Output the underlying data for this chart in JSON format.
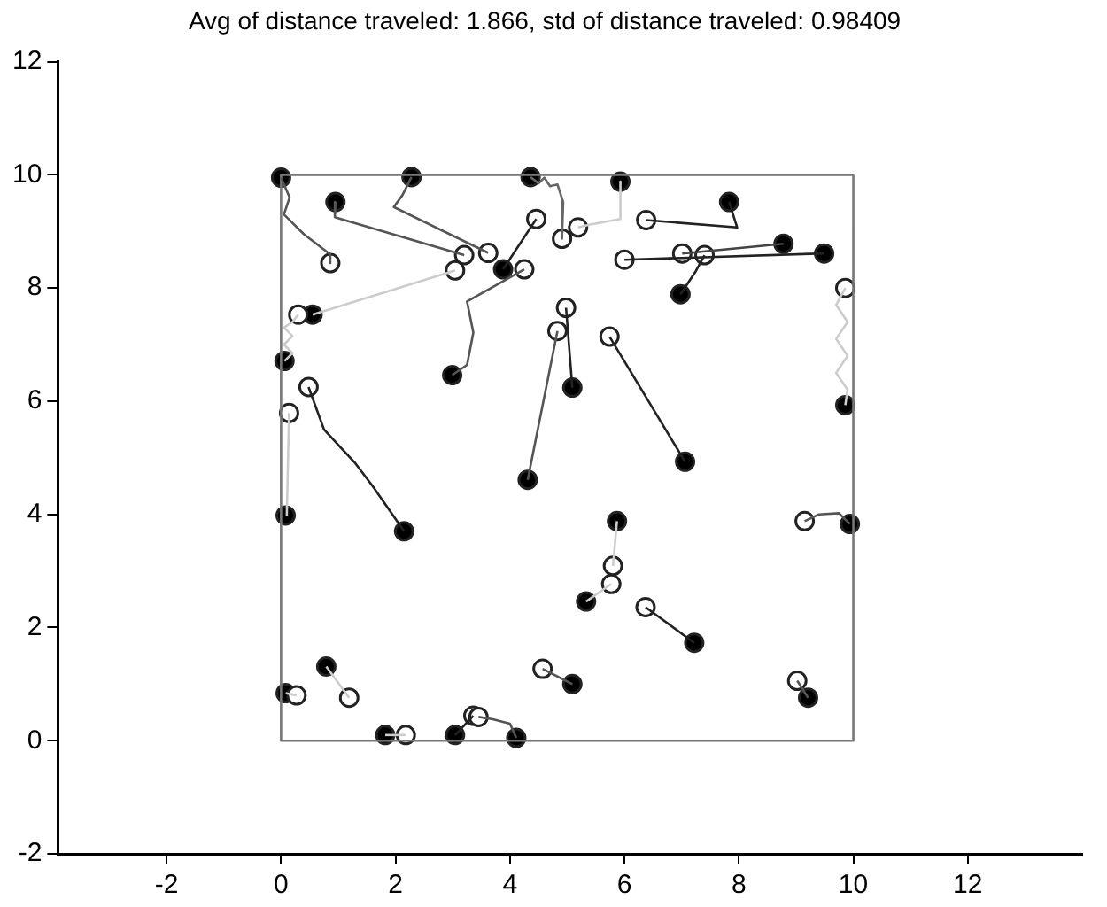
{
  "chart_data": {
    "type": "line",
    "title": "Avg of distance traveled: 1.866, std of distance traveled: 0.98409",
    "xlim": [
      -3.9,
      14
    ],
    "xticks": [
      -2,
      0,
      2,
      4,
      6,
      8,
      10,
      12
    ],
    "ylim": [
      -2,
      12
    ],
    "yticks": [
      -2,
      0,
      2,
      4,
      6,
      8,
      10,
      12
    ],
    "grid": false,
    "legend": false,
    "marker": "none",
    "line_style": "solid",
    "series": [
      {
        "color": "#555555",
        "x": [
          0,
          0.15,
          0.05,
          0.4,
          0.85,
          0.86
        ],
        "values": [
          9.95,
          9.6,
          9.3,
          8.95,
          8.6,
          8.44
        ]
      },
      {
        "type": "line",
        "color": "#555555",
        "x": [
          0.95,
          0.94,
          3.2
        ],
        "values": [
          9.52,
          9.25,
          8.58
        ]
      },
      {
        "type": "line",
        "color": "#555555",
        "x": [
          2.28,
          2.12,
          1.97,
          3.62
        ],
        "values": [
          9.96,
          9.64,
          9.43,
          8.62
        ]
      },
      {
        "type": "line",
        "color": "#666666",
        "x": [
          4.36,
          4.5,
          4.6,
          4.7,
          4.83,
          4.93,
          4.91
        ],
        "values": [
          9.96,
          9.85,
          9.95,
          9.8,
          9.83,
          9.52,
          8.87
        ]
      },
      {
        "type": "line",
        "color": "#cccccc",
        "x": [
          5.93,
          5.93,
          5.4,
          5.19
        ],
        "values": [
          9.88,
          9.22,
          9.12,
          9.07
        ]
      },
      {
        "type": "line",
        "color": "#222222",
        "x": [
          7.83,
          7.97,
          6.38
        ],
        "values": [
          9.52,
          9.07,
          9.2
        ]
      },
      {
        "type": "line",
        "color": "#222222",
        "x": [
          9.49,
          6.0
        ],
        "values": [
          8.61,
          8.5
        ]
      },
      {
        "type": "line",
        "color": "#444444",
        "x": [
          8.78,
          7.01
        ],
        "values": [
          8.78,
          8.61
        ]
      },
      {
        "type": "line",
        "color": "#222222",
        "x": [
          6.98,
          7.25,
          7.4
        ],
        "values": [
          7.89,
          8.3,
          8.58
        ]
      },
      {
        "type": "line",
        "color": "#222222",
        "x": [
          3.88,
          4.46
        ],
        "values": [
          8.33,
          9.22
        ]
      },
      {
        "type": "line",
        "color": "#555555",
        "x": [
          2.99,
          3.25,
          3.36,
          3.25,
          4.25
        ],
        "values": [
          6.46,
          6.64,
          7.21,
          7.76,
          8.33
        ]
      },
      {
        "type": "line",
        "color": "#cccccc",
        "x": [
          0.55,
          3.04
        ],
        "values": [
          7.53,
          8.31
        ]
      },
      {
        "type": "line",
        "color": "#cccccc",
        "x": [
          0.06,
          0.2,
          0.05,
          0.2,
          0.05,
          0.2,
          0.3
        ],
        "values": [
          6.71,
          6.85,
          7.0,
          7.15,
          7.3,
          7.4,
          7.53
        ]
      },
      {
        "type": "line",
        "color": "#222222",
        "x": [
          0.48,
          0.75,
          1.3,
          1.6,
          2.15
        ],
        "values": [
          6.25,
          5.5,
          4.9,
          4.5,
          3.7
        ]
      },
      {
        "type": "line",
        "color": "#cccccc",
        "x": [
          0.14,
          0.12,
          0.1
        ],
        "values": [
          5.79,
          4.9,
          3.98
        ]
      },
      {
        "type": "line",
        "color": "#222222",
        "x": [
          4.98,
          5.09
        ],
        "values": [
          7.65,
          6.24
        ]
      },
      {
        "type": "line",
        "color": "#555555",
        "x": [
          4.83,
          4.31
        ],
        "values": [
          7.24,
          4.61
        ]
      },
      {
        "type": "line",
        "color": "#222222",
        "x": [
          5.74,
          7.06
        ],
        "values": [
          7.14,
          4.93
        ]
      },
      {
        "type": "line",
        "color": "#cccccc",
        "x": [
          9.86,
          9.7,
          9.9,
          9.7,
          9.9,
          9.7,
          9.9,
          9.86
        ],
        "values": [
          8.0,
          7.7,
          7.4,
          7.1,
          6.8,
          6.5,
          6.2,
          5.93
        ]
      },
      {
        "type": "line",
        "color": "#555555",
        "x": [
          9.15,
          9.4,
          9.75,
          9.94
        ],
        "values": [
          3.88,
          4.0,
          4.02,
          3.83
        ]
      },
      {
        "type": "line",
        "color": "#cccccc",
        "x": [
          5.87,
          5.8
        ],
        "values": [
          3.88,
          3.09
        ]
      },
      {
        "type": "line",
        "color": "#cccccc",
        "x": [
          5.33,
          5.77
        ],
        "values": [
          2.46,
          2.77
        ]
      },
      {
        "type": "line",
        "color": "#222222",
        "x": [
          6.37,
          7.22
        ],
        "values": [
          2.36,
          1.73
        ]
      },
      {
        "type": "line",
        "color": "#555555",
        "x": [
          4.57,
          5.09
        ],
        "values": [
          1.27,
          1.0
        ]
      },
      {
        "type": "line",
        "color": "#555555",
        "x": [
          9.02,
          9.21
        ],
        "values": [
          1.06,
          0.76
        ]
      },
      {
        "type": "line",
        "color": "#cccccc",
        "x": [
          0.08,
          0.27
        ],
        "values": [
          0.84,
          0.8
        ]
      },
      {
        "type": "line",
        "color": "#cccccc",
        "x": [
          0.79,
          1.19
        ],
        "values": [
          1.31,
          0.76
        ]
      },
      {
        "type": "line",
        "color": "#cccccc",
        "x": [
          1.82,
          2.18
        ],
        "values": [
          0.1,
          0.1
        ]
      },
      {
        "type": "line",
        "color": "#222222",
        "x": [
          3.04,
          3.36
        ],
        "values": [
          0.1,
          0.44
        ]
      },
      {
        "type": "line",
        "color": "#555555",
        "x": [
          4.11,
          4.0,
          3.7,
          3.45
        ],
        "values": [
          0.05,
          0.3,
          0.38,
          0.42
        ]
      },
      {
        "type": "line",
        "color": "#777777",
        "x": [
          0,
          10,
          10
        ],
        "values": [
          0,
          0,
          10
        ]
      },
      {
        "type": "line",
        "color": "#777777",
        "x": [
          10,
          0,
          0
        ],
        "values": [
          10,
          10,
          0
        ]
      },
      {
        "type": "scatter",
        "marker": "circle",
        "color": "#ffffff",
        "x": [
          0.86,
          3.2,
          3.62,
          4.91,
          5.19,
          6.38,
          6.0,
          7.01,
          7.4,
          4.46,
          4.25,
          3.04,
          0.3,
          0.48,
          0.14,
          4.98,
          4.83,
          5.74,
          9.86,
          9.15,
          5.8,
          5.77,
          6.37,
          4.57,
          9.02,
          0.27,
          1.19,
          2.18,
          3.36,
          3.45
        ],
        "values": [
          8.44,
          8.58,
          8.62,
          8.87,
          9.07,
          9.2,
          8.5,
          8.61,
          8.58,
          9.22,
          8.33,
          8.31,
          7.53,
          6.25,
          5.79,
          7.65,
          7.24,
          7.14,
          8.0,
          3.88,
          3.09,
          2.77,
          2.36,
          1.27,
          1.06,
          0.8,
          0.76,
          0.1,
          0.44,
          0.42
        ]
      },
      {
        "type": "scatter",
        "marker": "circle",
        "color": "#000000",
        "x": [
          0,
          0.95,
          2.28,
          4.36,
          5.93,
          7.83,
          9.49,
          8.78,
          6.98,
          3.88,
          2.99,
          0.55,
          0.06,
          2.15,
          0.08,
          5.09,
          4.31,
          7.06,
          9.86,
          9.94,
          5.87,
          5.33,
          7.22,
          5.09,
          9.21,
          0.08,
          0.79,
          1.82,
          3.04,
          4.11
        ],
        "values": [
          9.95,
          9.52,
          9.96,
          9.96,
          9.88,
          9.52,
          8.61,
          8.78,
          7.89,
          8.33,
          6.46,
          7.53,
          6.71,
          3.7,
          3.98,
          6.24,
          4.61,
          4.93,
          5.93,
          3.83,
          3.88,
          2.46,
          1.73,
          1.0,
          0.76,
          0.84,
          1.31,
          0.1,
          0.1,
          0.05
        ]
      }
    ]
  }
}
